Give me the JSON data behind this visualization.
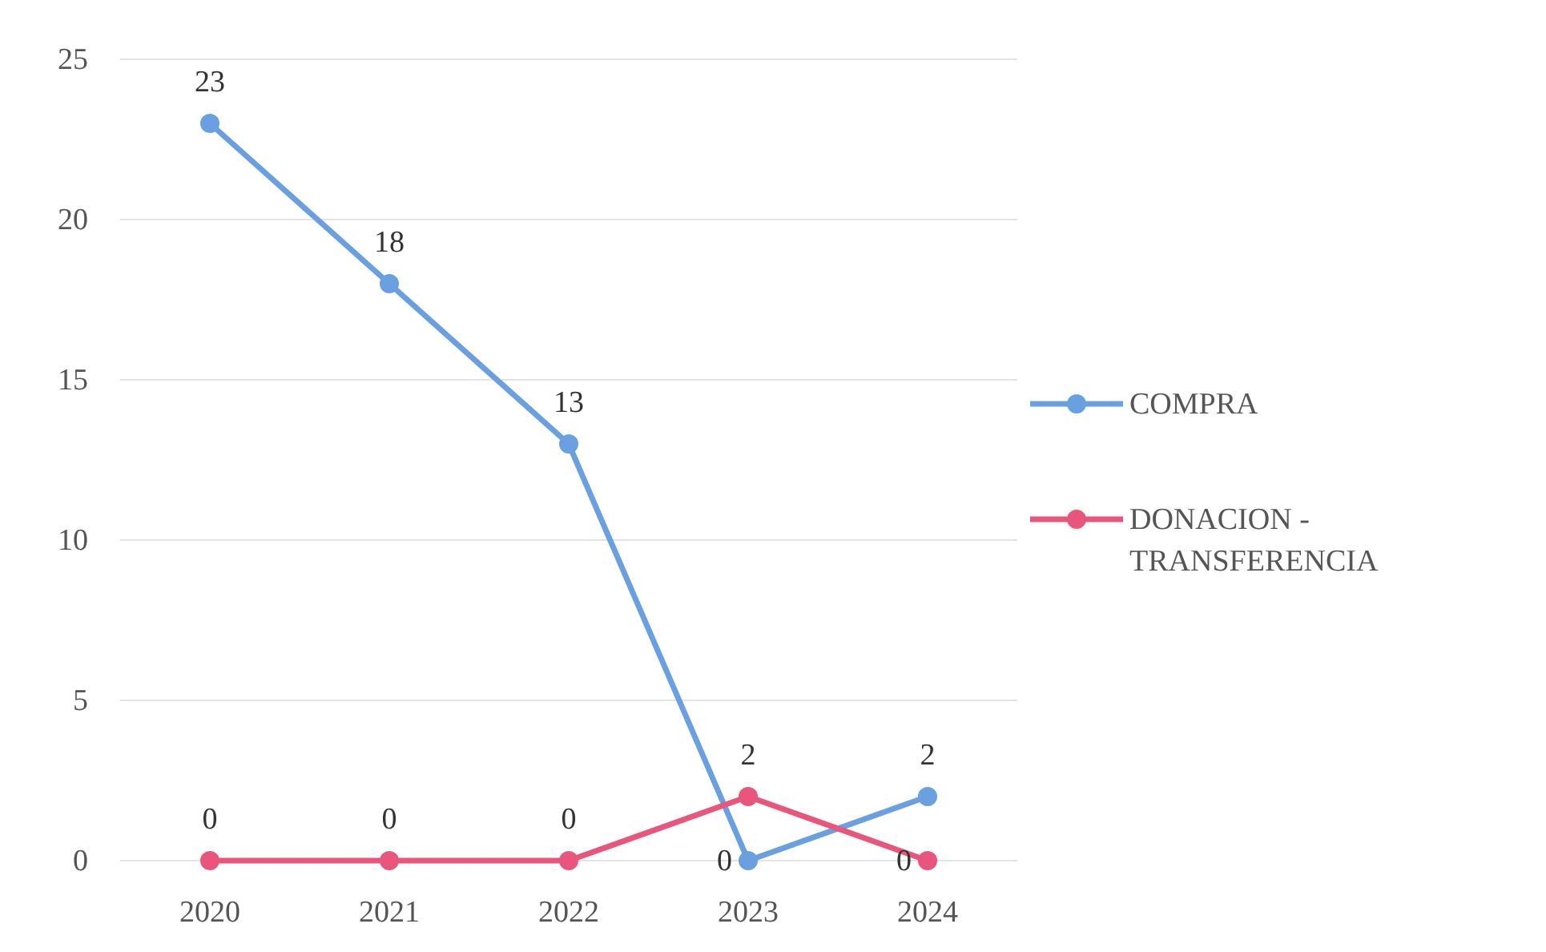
{
  "chart_data": {
    "type": "line",
    "categories": [
      "2020",
      "2021",
      "2022",
      "2023",
      "2024"
    ],
    "series": [
      {
        "name": "COMPRA",
        "color": "#6a9fe0",
        "values": [
          23,
          18,
          13,
          0,
          2
        ]
      },
      {
        "name": "DONACION - TRANSFERENCIA",
        "color": "#e8567c",
        "values": [
          0,
          0,
          0,
          2,
          0
        ]
      }
    ],
    "ylim": [
      0,
      25
    ],
    "yticks": [
      0,
      5,
      10,
      15,
      20,
      25
    ],
    "grid": "y",
    "legend": "right",
    "marker": "circle",
    "line_style": "solid",
    "data_labels": true
  }
}
